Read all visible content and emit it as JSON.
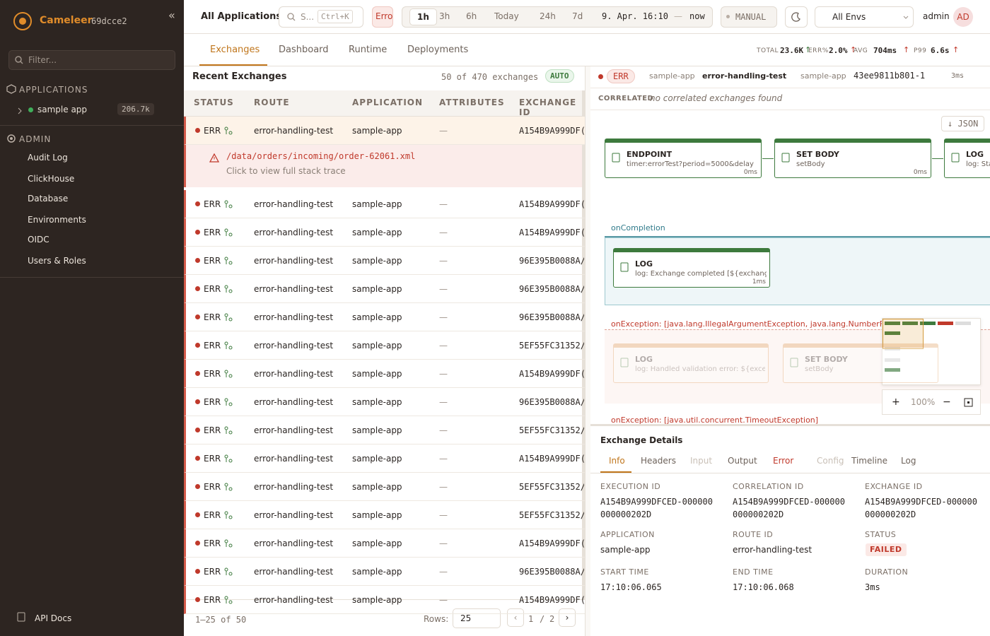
{
  "sidebar": {
    "brand": "Cameleer",
    "version": "69dcce2",
    "collapse": "«",
    "filter": "Filter...",
    "applications_heading": "APPLICATIONS",
    "apps": [
      {
        "name": "sample app",
        "count": "206.7k"
      }
    ],
    "admin_heading": "ADMIN",
    "admin_items": [
      "Audit Log",
      "ClickHouse",
      "Database",
      "Environments",
      "OIDC",
      "Users & Roles"
    ],
    "api_docs": "API Docs"
  },
  "topbar": {
    "breadcrumb": "All Applications",
    "search": "S...",
    "shortcut": "Ctrl+K",
    "status_chip": "Erro",
    "time_ranges": [
      "1h",
      "3h",
      "6h",
      "Today",
      "24h",
      "7d"
    ],
    "range_start": "9. Apr. 16:10",
    "range_sep": "—",
    "range_end": "now",
    "mode": "MANUAL",
    "env": "All Envs",
    "user": "admin",
    "avatar": "AD"
  },
  "tabs": [
    "Exchanges",
    "Dashboard",
    "Runtime",
    "Deployments"
  ],
  "stats": [
    {
      "label": "TOTAL",
      "value": "23.6K",
      "trend": "↑"
    },
    {
      "label": "ERR%",
      "value": "2.0%",
      "trend": "↑"
    },
    {
      "label": "AVG",
      "value": "704ms",
      "trend": "↑"
    },
    {
      "label": "P99",
      "value": "6.6s",
      "trend": "↑"
    }
  ],
  "list": {
    "title": "Recent Exchanges",
    "count": "50 of 470 exchanges",
    "auto": "AUTO",
    "columns": [
      "STATUS",
      "ROUTE",
      "APPLICATION",
      "ATTRIBUTES",
      "EXCHANGE ID"
    ],
    "rows": [
      [
        "ERR",
        "error-handling-test",
        "sample-app",
        "—",
        "A154B9A999DF("
      ],
      [
        "ERR",
        "error-handling-test",
        "sample-app",
        "—",
        "A154B9A999DF("
      ],
      [
        "ERR",
        "error-handling-test",
        "sample-app",
        "—",
        "A154B9A999DF("
      ],
      [
        "ERR",
        "error-handling-test",
        "sample-app",
        "—",
        "96E395B0088A/"
      ],
      [
        "ERR",
        "error-handling-test",
        "sample-app",
        "—",
        "96E395B0088A/"
      ],
      [
        "ERR",
        "error-handling-test",
        "sample-app",
        "—",
        "96E395B0088A/"
      ],
      [
        "ERR",
        "error-handling-test",
        "sample-app",
        "—",
        "5EF55FC31352/"
      ],
      [
        "ERR",
        "error-handling-test",
        "sample-app",
        "—",
        "A154B9A999DF("
      ],
      [
        "ERR",
        "error-handling-test",
        "sample-app",
        "—",
        "96E395B0088A/"
      ],
      [
        "ERR",
        "error-handling-test",
        "sample-app",
        "—",
        "5EF55FC31352/"
      ],
      [
        "ERR",
        "error-handling-test",
        "sample-app",
        "—",
        "A154B9A999DF("
      ],
      [
        "ERR",
        "error-handling-test",
        "sample-app",
        "—",
        "5EF55FC31352/"
      ],
      [
        "ERR",
        "error-handling-test",
        "sample-app",
        "—",
        "5EF55FC31352/"
      ],
      [
        "ERR",
        "error-handling-test",
        "sample-app",
        "—",
        "A154B9A999DF("
      ],
      [
        "ERR",
        "error-handling-test",
        "sample-app",
        "—",
        "96E395B0088A/"
      ],
      [
        "ERR",
        "error-handling-test",
        "sample-app",
        "—",
        "A154B9A999DF("
      ]
    ],
    "error_path": "/data/orders/incoming/order-62061.xml",
    "error_hint": "Click to view full stack trace",
    "range": "1–25 of 50",
    "rows_label": "Rows:",
    "rows_value": "25",
    "prev": "‹",
    "page": "1",
    "page_sep": "/",
    "pages": "2",
    "next": "›"
  },
  "detail": {
    "status": "ERR",
    "app": "sample-app",
    "route": "error-handling-test",
    "app2": "sample-app",
    "exchange": "43ee9811b801-1",
    "duration": "3ms",
    "correlated_label": "CORRELATED",
    "correlated_text": "no correlated exchanges found",
    "json": "↓ JSON",
    "nodes": [
      {
        "title": "ENDPOINT",
        "sub": "timer:errorTest?period=5000&delay",
        "time": "0ms"
      },
      {
        "title": "SET BODY",
        "sub": "setBody",
        "time": "0ms"
      },
      {
        "title": "LOG",
        "sub": "log: Sta"
      }
    ],
    "on_completion": "onCompletion",
    "completion_node": {
      "title": "LOG",
      "sub": "log: Exchange completed [${exchange",
      "time": "1ms"
    },
    "on_exception_1": "onException: [java.lang.IllegalArgumentException, java.lang.NumberFormatException]",
    "exception_nodes": [
      {
        "title": "LOG",
        "sub": "log: Handled validation error: ${exception"
      },
      {
        "title": "SET BODY",
        "sub": "setBody"
      }
    ],
    "on_exception_2": "onException: [java.util.concurrent.TimeoutException]",
    "zoom_in": "+",
    "zoom": "100%",
    "zoom_out": "−",
    "details_title": "Exchange Details",
    "detail_tabs": [
      "Info",
      "Headers",
      "Input",
      "Output",
      "Error",
      "Config",
      "Timeline",
      "Log"
    ],
    "fields": [
      {
        "label": "EXECUTION ID",
        "value": "A154B9A999DFCED-000000000000202D"
      },
      {
        "label": "CORRELATION ID",
        "value": "A154B9A999DFCED-000000000000202D"
      },
      {
        "label": "EXCHANGE ID",
        "value": "A154B9A999DFCED-000000000000202D"
      },
      {
        "label": "APPLICATION",
        "value": "sample-app"
      },
      {
        "label": "ROUTE ID",
        "value": "error-handling-test"
      },
      {
        "label": "STATUS",
        "value": "FAILED"
      },
      {
        "label": "START TIME",
        "value": "17:10:06.065"
      },
      {
        "label": "END TIME",
        "value": "17:10:06.068"
      },
      {
        "label": "DURATION",
        "value": "3ms"
      }
    ]
  }
}
